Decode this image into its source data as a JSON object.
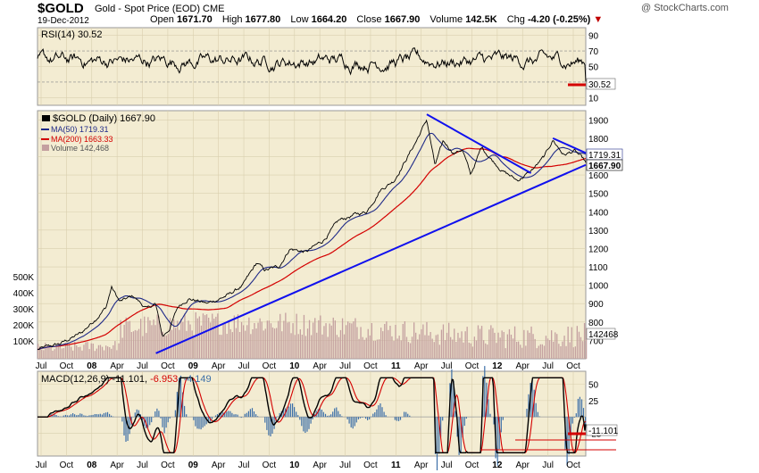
{
  "header": {
    "symbol": "$GOLD",
    "name": "Gold - Spot Price (EOD)",
    "exchange": "CME",
    "date": "19-Dec-2012",
    "brand": "@ StockCharts.com",
    "open_label": "Open",
    "open": "1671.70",
    "high_label": "High",
    "high": "1677.80",
    "low_label": "Low",
    "low": "1664.20",
    "close_label": "Close",
    "close": "1667.90",
    "volume_label": "Volume",
    "volume": "142.5K",
    "chg_label": "Chg",
    "chg": "-4.20 (-0.25%)",
    "chg_arrow": "▼"
  },
  "colors": {
    "panel_bg": "#f3ecd2",
    "grid": "#d9cfae",
    "price": "#000000",
    "ma50": "#1f2a88",
    "ma200": "#d40000",
    "volume": "#c4a0a0",
    "trendline": "#1010ee",
    "macd_hist": "#3c6fa8",
    "accent_red": "#d40000"
  },
  "chart_data": [
    {
      "type": "line",
      "panel": "rsi",
      "legend": "RSI(14) 30.52",
      "ylim": [
        0,
        100
      ],
      "yticks": [
        "90",
        "70",
        "50",
        "30",
        "10"
      ],
      "last_value_label": "30.52",
      "series": [
        {
          "name": "RSI(14)",
          "last": 30.52
        }
      ]
    },
    {
      "type": "line",
      "panel": "price",
      "ylim": [
        600,
        1950
      ],
      "yticks": [
        "1900",
        "1800",
        "1700",
        "1600",
        "1500",
        "1400",
        "1300",
        "1200",
        "1100",
        "1000",
        "900",
        "800",
        "700"
      ],
      "volume_ticks": [
        "500K",
        "400K",
        "300K",
        "200K",
        "100K"
      ],
      "x_labels": [
        "Jul",
        "Oct",
        "08",
        "Apr",
        "Jul",
        "Oct",
        "09",
        "Apr",
        "Jul",
        "Oct",
        "10",
        "Apr",
        "Jul",
        "Oct",
        "11",
        "Apr",
        "Jul",
        "Oct",
        "12",
        "Apr",
        "Jul",
        "Oct"
      ],
      "legend": [
        {
          "name": "$GOLD (Daily) 1667.90"
        },
        {
          "name": "MA(50) 1719.31"
        },
        {
          "name": "MA(200) 1663.33"
        },
        {
          "name": "Volume 142,468"
        }
      ],
      "last_value_labels": {
        "ma50": "1719.31",
        "close": "1667.90",
        "volume": "142468"
      },
      "price_anchors": [
        {
          "t": 0.0,
          "v": 650
        },
        {
          "t": 0.04,
          "v": 680
        },
        {
          "t": 0.08,
          "v": 740
        },
        {
          "t": 0.1,
          "v": 800
        },
        {
          "t": 0.125,
          "v": 880
        },
        {
          "t": 0.135,
          "v": 990
        },
        {
          "t": 0.15,
          "v": 910
        },
        {
          "t": 0.175,
          "v": 940
        },
        {
          "t": 0.2,
          "v": 870
        },
        {
          "t": 0.215,
          "v": 900
        },
        {
          "t": 0.228,
          "v": 720
        },
        {
          "t": 0.24,
          "v": 760
        },
        {
          "t": 0.256,
          "v": 880
        },
        {
          "t": 0.275,
          "v": 930
        },
        {
          "t": 0.31,
          "v": 900
        },
        {
          "t": 0.35,
          "v": 950
        },
        {
          "t": 0.375,
          "v": 1000
        },
        {
          "t": 0.4,
          "v": 1120
        },
        {
          "t": 0.415,
          "v": 1080
        },
        {
          "t": 0.44,
          "v": 1100
        },
        {
          "t": 0.46,
          "v": 1200
        },
        {
          "t": 0.49,
          "v": 1180
        },
        {
          "t": 0.52,
          "v": 1240
        },
        {
          "t": 0.55,
          "v": 1350
        },
        {
          "t": 0.575,
          "v": 1380
        },
        {
          "t": 0.6,
          "v": 1400
        },
        {
          "t": 0.625,
          "v": 1520
        },
        {
          "t": 0.65,
          "v": 1570
        },
        {
          "t": 0.675,
          "v": 1700
        },
        {
          "t": 0.69,
          "v": 1780
        },
        {
          "t": 0.71,
          "v": 1900
        },
        {
          "t": 0.725,
          "v": 1650
        },
        {
          "t": 0.74,
          "v": 1780
        },
        {
          "t": 0.76,
          "v": 1720
        },
        {
          "t": 0.775,
          "v": 1740
        },
        {
          "t": 0.79,
          "v": 1600
        },
        {
          "t": 0.81,
          "v": 1750
        },
        {
          "t": 0.83,
          "v": 1680
        },
        {
          "t": 0.85,
          "v": 1620
        },
        {
          "t": 0.875,
          "v": 1570
        },
        {
          "t": 0.9,
          "v": 1620
        },
        {
          "t": 0.925,
          "v": 1700
        },
        {
          "t": 0.94,
          "v": 1790
        },
        {
          "t": 0.96,
          "v": 1710
        },
        {
          "t": 0.98,
          "v": 1730
        },
        {
          "t": 1.0,
          "v": 1668
        }
      ],
      "trendlines": [
        {
          "from": {
            "t": 0.216,
            "v": 630
          },
          "to": {
            "t": 1.0,
            "v": 1655
          }
        },
        {
          "from": {
            "t": 0.71,
            "v": 1930
          },
          "to": {
            "t": 0.9,
            "v": 1610
          }
        },
        {
          "from": {
            "t": 0.94,
            "v": 1800
          },
          "to": {
            "t": 1.0,
            "v": 1720
          }
        }
      ]
    },
    {
      "type": "line",
      "panel": "macd",
      "legend": {
        "name": "MACD(12,26,9)",
        "macd": "-11.101",
        "signal": "-6.953",
        "hist": "-4.149"
      },
      "ylim": [
        -60,
        70
      ],
      "yticks": [
        "50",
        "25",
        "-25"
      ],
      "last_value_label": "-11.101",
      "x_labels": [
        "Jul",
        "Oct",
        "08",
        "Apr",
        "Jul",
        "Oct",
        "09",
        "Apr",
        "Jul",
        "Oct",
        "10",
        "Apr",
        "Jul",
        "Oct",
        "11",
        "Apr",
        "Jul",
        "Oct",
        "12",
        "Apr",
        "Jul",
        "Oct"
      ]
    }
  ]
}
